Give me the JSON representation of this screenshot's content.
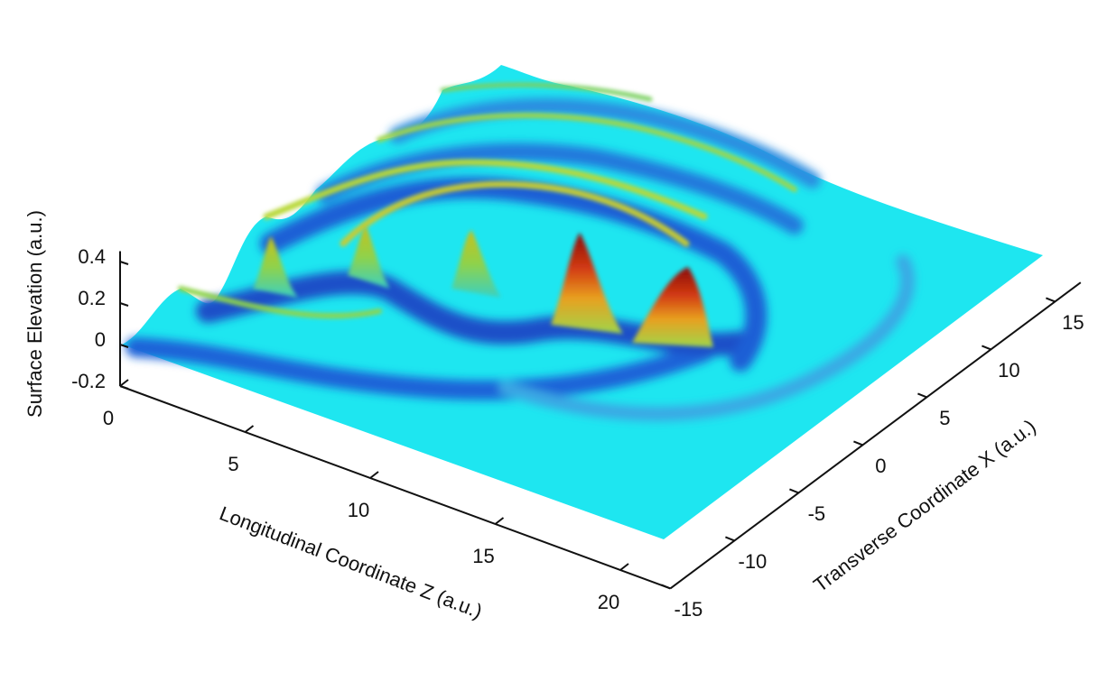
{
  "chart_data": {
    "type": "surface",
    "xlabel": "Longitudinal Coordinate Z (a.u.)",
    "ylabel": "Transverse Coordinate X (a.u.)",
    "zlabel": "Surface Elevation (a.u.)",
    "xlim": [
      0,
      22
    ],
    "xticks": [
      0,
      5,
      10,
      15,
      20
    ],
    "ylim": [
      -15,
      17
    ],
    "yticks": [
      -15,
      -10,
      -5,
      0,
      5,
      10,
      15
    ],
    "zlim": [
      -0.2,
      0.45
    ],
    "zticks": [
      -0.2,
      0,
      0.2,
      0.4
    ],
    "colormap": "jet"
  }
}
